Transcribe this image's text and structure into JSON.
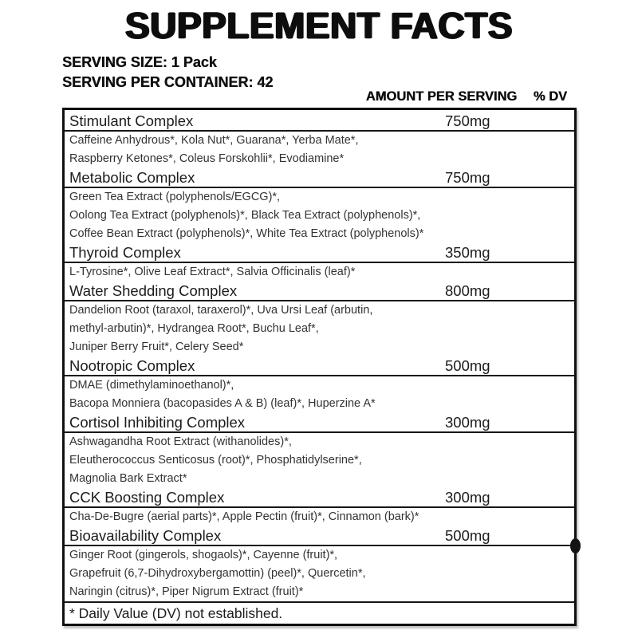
{
  "title": "SUPPLEMENT FACTS",
  "serving": {
    "size_label": "SERVING SIZE: 1 Pack",
    "container_label": "SERVING PER CONTAINER: 42"
  },
  "columns": {
    "amount_header": "AMOUNT PER SERVING",
    "dv_header": "% DV"
  },
  "sections": [
    {
      "name": "Stimulant Complex",
      "amount": "750mg",
      "ingredient_lines": [
        "Caffeine Anhydrous*, Kola Nut*, Guarana*, Yerba Mate*,",
        "Raspberry Ketones*, Coleus Forskohlii*, Evodiamine*"
      ]
    },
    {
      "name": "Metabolic Complex",
      "amount": "750mg",
      "ingredient_lines": [
        "Green Tea Extract (polyphenols/EGCG)*,",
        "Oolong Tea Extract (polyphenols)*, Black Tea Extract (polyphenols)*,",
        "Coffee Bean Extract (polyphenols)*, White Tea Extract (polyphenols)*"
      ]
    },
    {
      "name": "Thyroid Complex",
      "amount": "350mg",
      "ingredient_lines": [
        "L-Tyrosine*, Olive Leaf Extract*, Salvia Officinalis (leaf)*"
      ]
    },
    {
      "name": "Water Shedding Complex",
      "amount": "800mg",
      "ingredient_lines": [
        "Dandelion Root (taraxol, taraxerol)*, Uva Ursi Leaf (arbutin,",
        "methyl-arbutin)*, Hydrangea Root*, Buchu Leaf*,",
        "Juniper Berry Fruit*, Celery Seed*"
      ]
    },
    {
      "name": "Nootropic Complex",
      "amount": "500mg",
      "ingredient_lines": [
        "DMAE (dimethylaminoethanol)*,",
        "Bacopa Monniera (bacopasides A & B) (leaf)*, Huperzine A*"
      ]
    },
    {
      "name": "Cortisol Inhibiting Complex",
      "amount": "300mg",
      "ingredient_lines": [
        "Ashwagandha Root Extract (withanolides)*,",
        "Eleutherococcus Senticosus (root)*, Phosphatidylserine*,",
        "Magnolia Bark Extract*"
      ]
    },
    {
      "name": "CCK Boosting Complex",
      "amount": "300mg",
      "ingredient_lines": [
        "Cha-De-Bugre (aerial parts)*, Apple Pectin (fruit)*, Cinnamon (bark)*"
      ]
    },
    {
      "name": "Bioavailability Complex",
      "amount": "500mg",
      "ingredient_lines": [
        "Ginger Root (gingerols, shogaols)*, Cayenne (fruit)*,",
        "Grapefruit (6,7-Dihydroxybergamottin) (peel)*, Quercetin*,",
        "Naringin (citrus)*, Piper Nigrum Extract (fruit)*"
      ]
    }
  ],
  "footnote": "* Daily Value (DV) not established."
}
